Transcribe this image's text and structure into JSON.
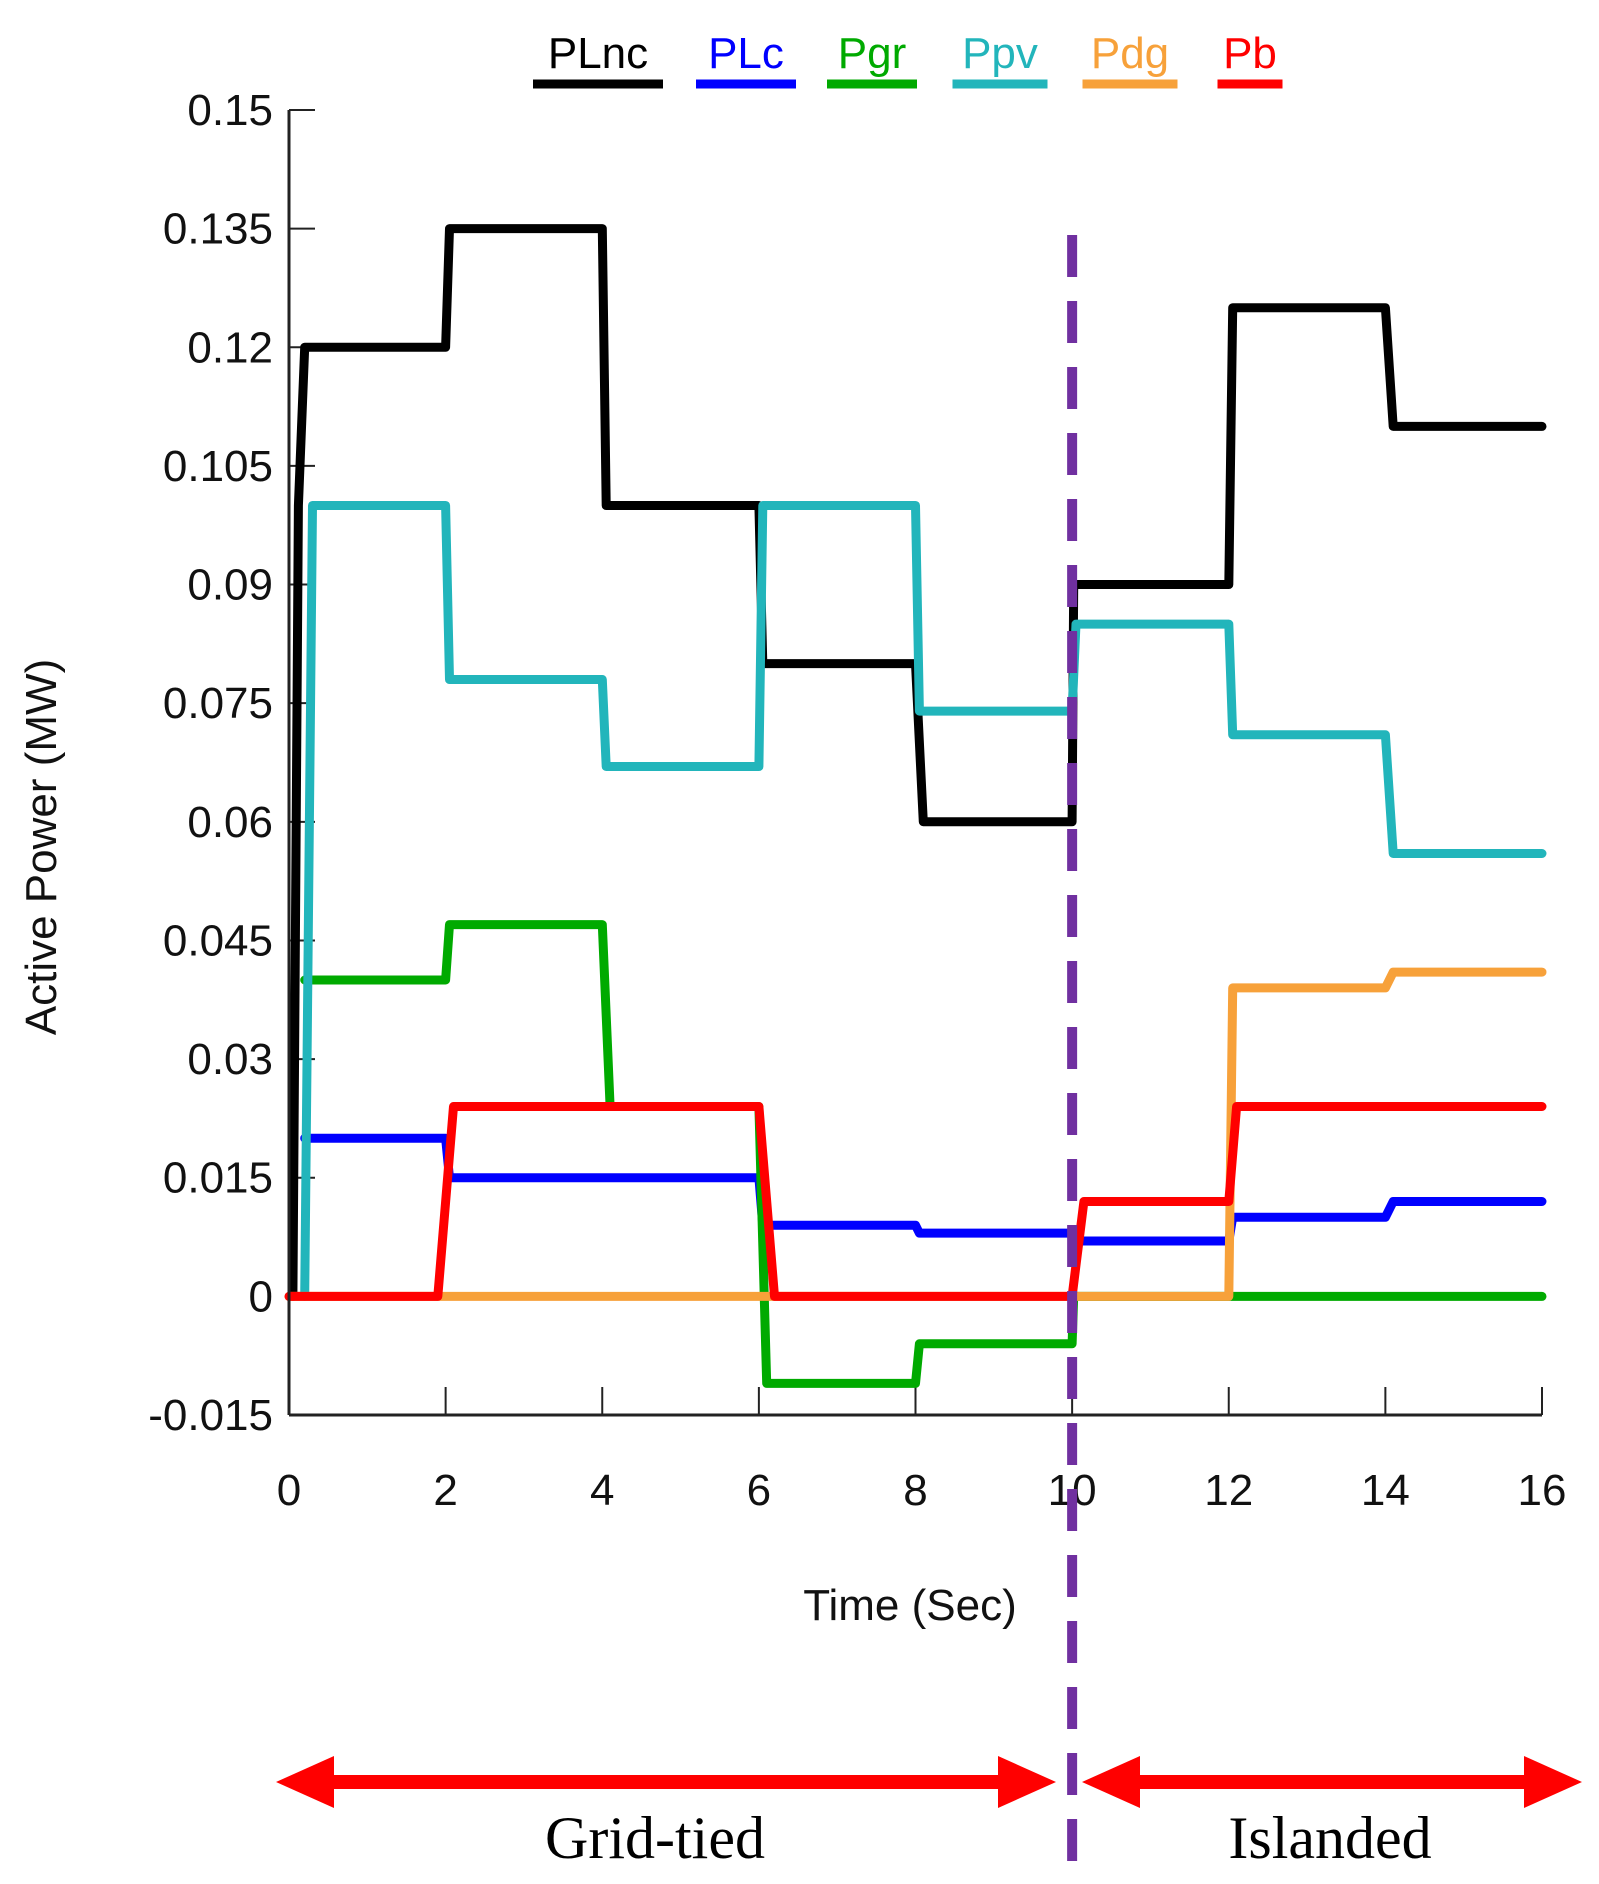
{
  "chart_data": {
    "type": "line",
    "title": "",
    "xlabel": "Time (Sec)",
    "ylabel": "Active Power (MW)",
    "xlim": [
      0,
      16
    ],
    "ylim": [
      -0.015,
      0.15
    ],
    "xticks": [
      "0",
      "2",
      "4",
      "6",
      "8",
      "10",
      "12",
      "14",
      "16"
    ],
    "yticks": [
      "0.15",
      "0.135",
      "0.12",
      "0.105",
      "0.09",
      "0.075",
      "0.06",
      "0.045",
      "0.03",
      "0.015",
      "0",
      "-0.015"
    ],
    "grid": false,
    "legend_position": "top",
    "series": [
      {
        "name": "PLnc",
        "color": "#000000",
        "points": [
          [
            0.05,
            0.0
          ],
          [
            0.12,
            0.1
          ],
          [
            0.2,
            0.12
          ],
          [
            2,
            0.12
          ],
          [
            2.05,
            0.135
          ],
          [
            4,
            0.135
          ],
          [
            4.05,
            0.1
          ],
          [
            6,
            0.1
          ],
          [
            6.05,
            0.08
          ],
          [
            8,
            0.08
          ],
          [
            8.1,
            0.06
          ],
          [
            10,
            0.06
          ],
          [
            10.02,
            0.09
          ],
          [
            12,
            0.09
          ],
          [
            12.05,
            0.125
          ],
          [
            14,
            0.125
          ],
          [
            14.1,
            0.11
          ],
          [
            16,
            0.11
          ]
        ]
      },
      {
        "name": "PLc",
        "color": "#0000ff",
        "points": [
          [
            0.2,
            0.02
          ],
          [
            2,
            0.02
          ],
          [
            2.05,
            0.015
          ],
          [
            6,
            0.015
          ],
          [
            6.05,
            0.009
          ],
          [
            8,
            0.009
          ],
          [
            8.05,
            0.008
          ],
          [
            10,
            0.008
          ],
          [
            10.05,
            0.007
          ],
          [
            12,
            0.007
          ],
          [
            12.05,
            0.01
          ],
          [
            14,
            0.01
          ],
          [
            14.1,
            0.012
          ],
          [
            16,
            0.012
          ]
        ]
      },
      {
        "name": "Pgr",
        "color": "#00aa00",
        "points": [
          [
            0.2,
            0.04
          ],
          [
            2,
            0.04
          ],
          [
            2.05,
            0.047
          ],
          [
            4,
            0.047
          ],
          [
            4.1,
            0.024
          ],
          [
            6,
            0.024
          ],
          [
            6.1,
            -0.011
          ],
          [
            8,
            -0.011
          ],
          [
            8.05,
            -0.006
          ],
          [
            10,
            -0.006
          ],
          [
            10.02,
            0.0
          ],
          [
            16,
            0.0
          ]
        ]
      },
      {
        "name": "Ppv",
        "color": "#22b5bb",
        "points": [
          [
            0.2,
            0.0
          ],
          [
            0.3,
            0.1
          ],
          [
            2,
            0.1
          ],
          [
            2.05,
            0.078
          ],
          [
            4,
            0.078
          ],
          [
            4.05,
            0.067
          ],
          [
            6,
            0.067
          ],
          [
            6.05,
            0.1
          ],
          [
            8,
            0.1
          ],
          [
            8.05,
            0.074
          ],
          [
            10,
            0.074
          ],
          [
            10.05,
            0.085
          ],
          [
            12,
            0.085
          ],
          [
            12.05,
            0.071
          ],
          [
            14,
            0.071
          ],
          [
            14.1,
            0.056
          ],
          [
            16,
            0.056
          ]
        ]
      },
      {
        "name": "Pdg",
        "color": "#f7a13a",
        "points": [
          [
            0,
            0.0
          ],
          [
            12,
            0.0
          ],
          [
            12.05,
            0.039
          ],
          [
            14,
            0.039
          ],
          [
            14.1,
            0.041
          ],
          [
            16,
            0.041
          ]
        ]
      },
      {
        "name": "Pb",
        "color": "#ff0000",
        "points": [
          [
            0,
            0.0
          ],
          [
            1.9,
            0.0
          ],
          [
            2.1,
            0.024
          ],
          [
            6,
            0.024
          ],
          [
            6.2,
            0.0
          ],
          [
            10,
            0.0
          ],
          [
            10.15,
            0.012
          ],
          [
            12,
            0.012
          ],
          [
            12.1,
            0.024
          ],
          [
            16,
            0.024
          ]
        ]
      }
    ],
    "annotations": [
      {
        "type": "vline",
        "x": 10,
        "color": "#7030a0",
        "style": "dashed"
      },
      {
        "type": "region-arrow",
        "label": "Grid-tied",
        "from": "left",
        "to": 10
      },
      {
        "type": "region-arrow",
        "label": "Islanded",
        "from": 10,
        "to": "right"
      }
    ]
  },
  "regions": {
    "left_label": "Grid-tied",
    "right_label": "Islanded",
    "arrow_color": "#ff0000",
    "divider_color": "#7030a0"
  }
}
